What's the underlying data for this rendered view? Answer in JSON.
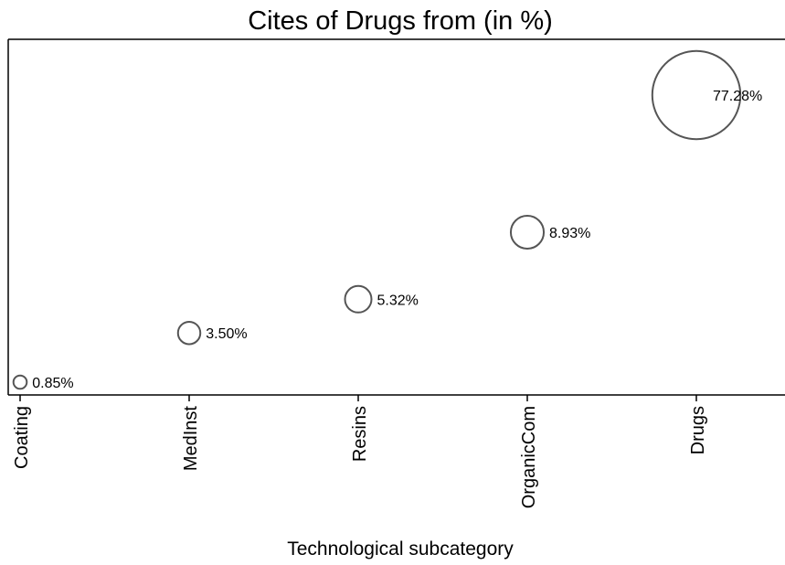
{
  "chart_data": {
    "type": "scatter",
    "title": "Cites of Drugs from (in %)",
    "xlabel": "Technological subcategory",
    "ylabel": "",
    "categories": [
      "Coating",
      "MedInst",
      "Resins",
      "OrganicCom",
      "Drugs"
    ],
    "values": [
      0.85,
      3.5,
      5.32,
      8.93,
      77.28
    ],
    "labels": [
      "0.85%",
      "3.50%",
      "5.32%",
      "8.93%",
      "77.28%"
    ],
    "marker": "hollow circle sized by value",
    "grid": false,
    "legend": "none",
    "colors": {
      "marker_stroke": "#555555",
      "axis": "#000000",
      "text": "#000000"
    }
  }
}
